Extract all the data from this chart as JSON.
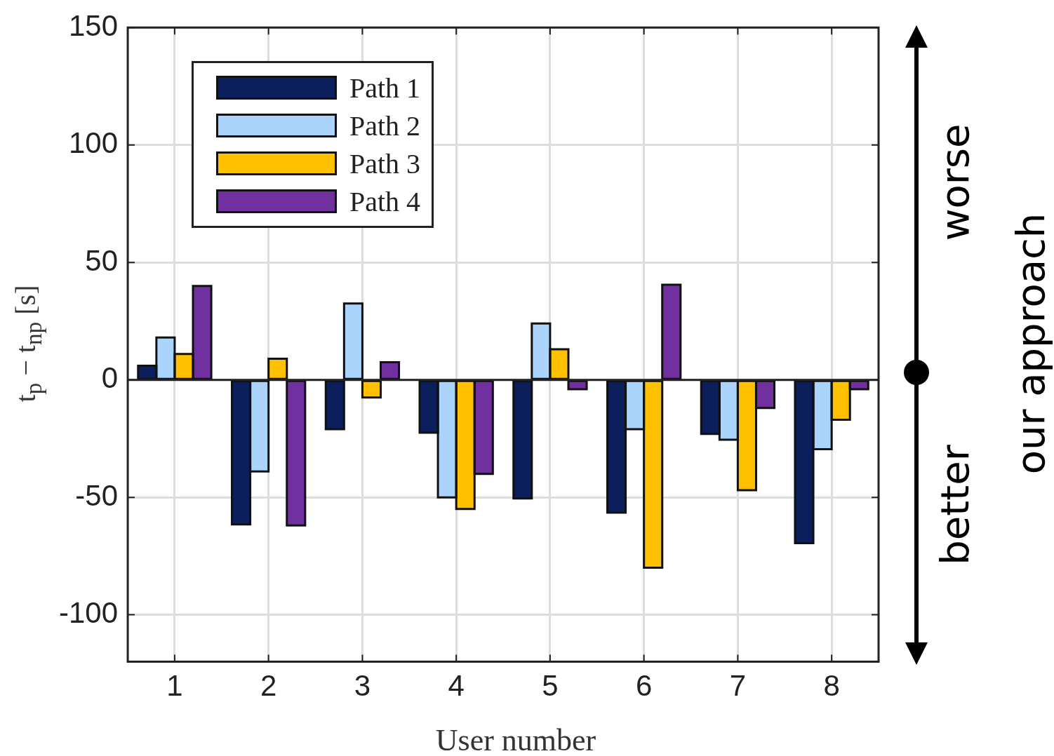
{
  "chart_data": {
    "type": "bar",
    "xlabel": "User number",
    "ylabel": "t$_{p}$ − t$_{np}$ [s]",
    "categories": [
      "1",
      "2",
      "3",
      "4",
      "5",
      "6",
      "7",
      "8"
    ],
    "series": [
      {
        "name": "Path 1",
        "color": "#0a1f5c",
        "values": [
          6,
          -61.5,
          -21,
          -22.5,
          -50.5,
          -56.5,
          -23,
          -69.5
        ]
      },
      {
        "name": "Path 2",
        "color": "#aad4fb",
        "values": [
          18,
          -39,
          32.5,
          -50,
          24,
          -21,
          -25.5,
          -29.5
        ]
      },
      {
        "name": "Path 3",
        "color": "#ffc000",
        "values": [
          11,
          9,
          -7.5,
          -55,
          13,
          -80,
          -47,
          -17
        ]
      },
      {
        "name": "Path 4",
        "color": "#7030a0",
        "values": [
          40,
          -62,
          7.5,
          -40,
          -4,
          40.5,
          -12,
          -4
        ]
      }
    ],
    "ylim": [
      -120,
      150
    ],
    "yticks": [
      -100,
      -50,
      0,
      50,
      100,
      150
    ],
    "grid": true,
    "legend": "top left",
    "annotations": [
      "worse",
      "better",
      "our approach"
    ]
  }
}
